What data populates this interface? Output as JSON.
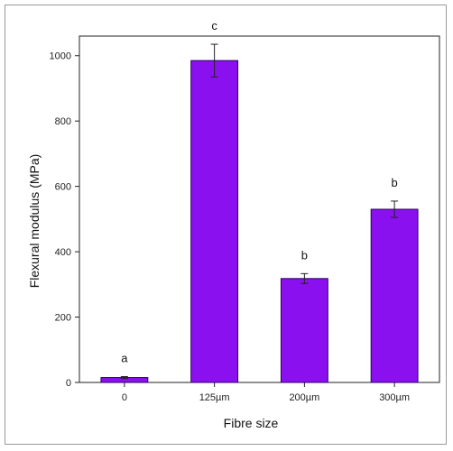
{
  "chart_data": {
    "type": "bar",
    "categories": [
      "0",
      "125µm",
      "200µm",
      "300µm"
    ],
    "values": [
      15,
      985,
      318,
      530
    ],
    "errors": [
      3,
      50,
      15,
      25
    ],
    "significance_letters": [
      "a",
      "c",
      "b",
      "b"
    ],
    "title": "",
    "xlabel": "Fibre size",
    "ylabel": "Flexural modulus (MPa)",
    "ylim": [
      0,
      1060
    ],
    "yticks": [
      0,
      200,
      400,
      600,
      800,
      1000
    ],
    "bar_color": "#8B10F0",
    "bar_edge_color": "#2a0060",
    "grid": false,
    "legend": "none"
  }
}
